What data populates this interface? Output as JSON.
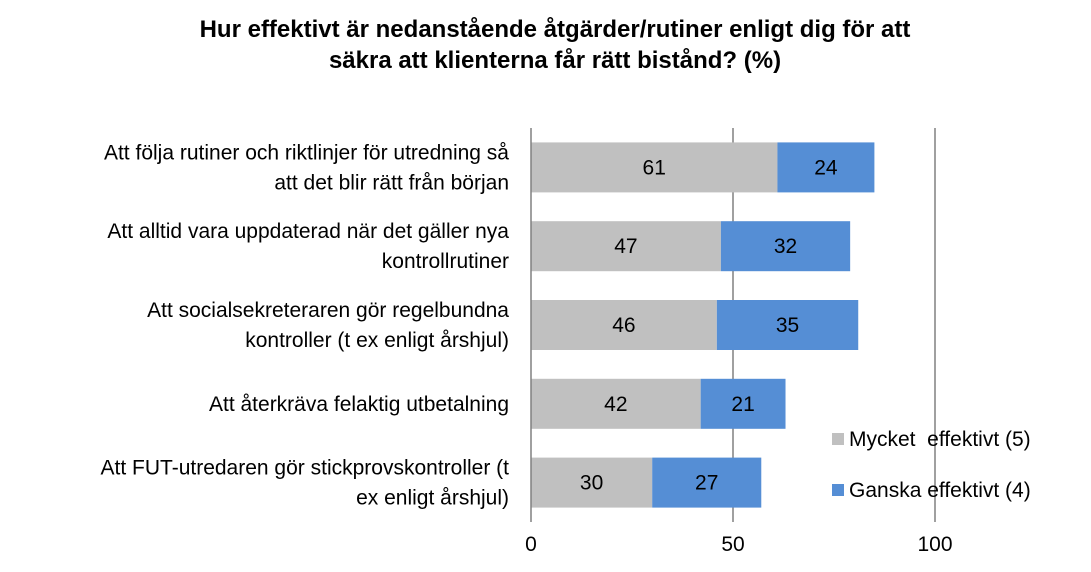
{
  "chart_data": {
    "type": "bar",
    "orientation": "horizontal",
    "stacked": true,
    "title": "Hur effektivt är nedanstående åtgärder/rutiner enligt dig för att säkra att klienterna får rätt bistånd? (%)",
    "title_lines": [
      "Hur effektivt är nedanstående åtgärder/rutiner enligt dig för att",
      "säkra att klienterna får rätt bistånd? (%)"
    ],
    "categories": [
      [
        "Att följa rutiner och riktlinjer för utredning så",
        "att det blir rätt från början"
      ],
      [
        "Att alltid vara uppdaterad när det gäller nya",
        "kontrollrutiner"
      ],
      [
        "Att socialsekreteraren gör regelbundna",
        "kontroller (t ex enligt årshjul)"
      ],
      [
        "Att återkräva felaktig utbetalning"
      ],
      [
        "Att FUT-utredaren gör stickprovskontroller (t",
        "ex enligt årshjul)"
      ]
    ],
    "series": [
      {
        "name": "Mycket  effektivt (5)",
        "color": "#c0c0c0",
        "values": [
          61,
          47,
          46,
          42,
          30
        ]
      },
      {
        "name": "Ganska effektivt (4)",
        "color": "#558ed5",
        "values": [
          24,
          32,
          35,
          21,
          27
        ]
      }
    ],
    "xlim": [
      0,
      100
    ],
    "xticks": [
      0,
      50,
      100
    ],
    "grid": "vertical",
    "legend_position": "right"
  }
}
